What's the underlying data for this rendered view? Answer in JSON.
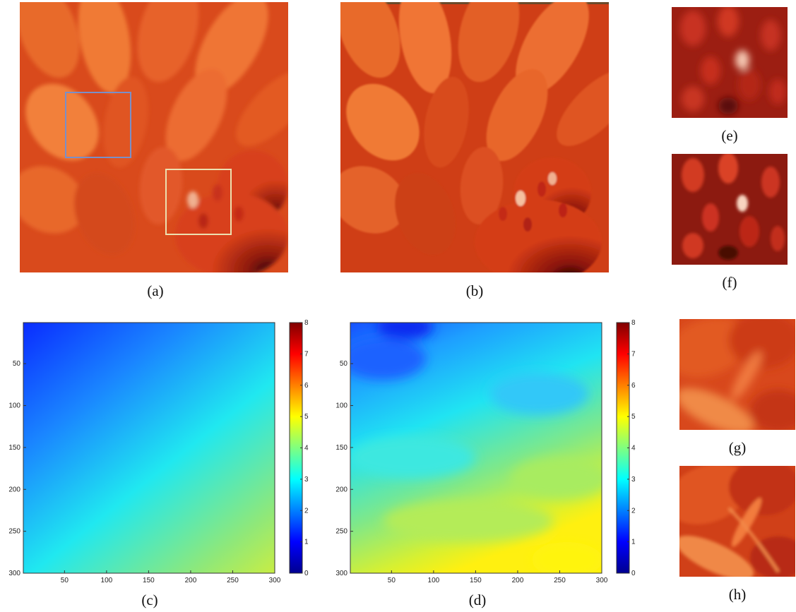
{
  "captions": {
    "a": "(a)",
    "b": "(b)",
    "c": "(c)",
    "d": "(d)",
    "e": "(e)",
    "f": "(f)",
    "g": "(g)",
    "h": "(h)"
  },
  "roi_box_colors": {
    "blue": "#7a8fc8",
    "cream": "#ece0b0"
  },
  "chart_data": [
    {
      "type": "heatmap",
      "panel": "(c)",
      "title": "",
      "xlabel": "",
      "ylabel": "",
      "x_ticks": [
        50,
        100,
        150,
        200,
        250,
        300
      ],
      "y_ticks": [
        50,
        100,
        150,
        200,
        250,
        300
      ],
      "xlim": [
        1,
        300
      ],
      "ylim": [
        1,
        300
      ],
      "y_reversed": true,
      "colorbar_ticks": [
        0,
        1,
        2,
        3,
        4,
        5,
        6,
        7,
        8
      ],
      "clim": [
        0,
        8
      ],
      "colormap": "jet",
      "field": "smooth linear gradient, ~1 at top-left increasing to ~5 at bottom-right"
    },
    {
      "type": "heatmap",
      "panel": "(d)",
      "title": "",
      "xlabel": "",
      "ylabel": "",
      "x_ticks": [
        50,
        100,
        150,
        200,
        250,
        300
      ],
      "y_ticks": [
        50,
        100,
        150,
        200,
        250,
        300
      ],
      "xlim": [
        1,
        300
      ],
      "ylim": [
        1,
        300
      ],
      "y_reversed": true,
      "colorbar_ticks": [
        0,
        1,
        2,
        3,
        4,
        5,
        6,
        7,
        8
      ],
      "clim": [
        0,
        8
      ],
      "colormap": "jet",
      "field": "patchy estimate, ~1.5 at top rising to ~5 at bottom-right"
    }
  ]
}
